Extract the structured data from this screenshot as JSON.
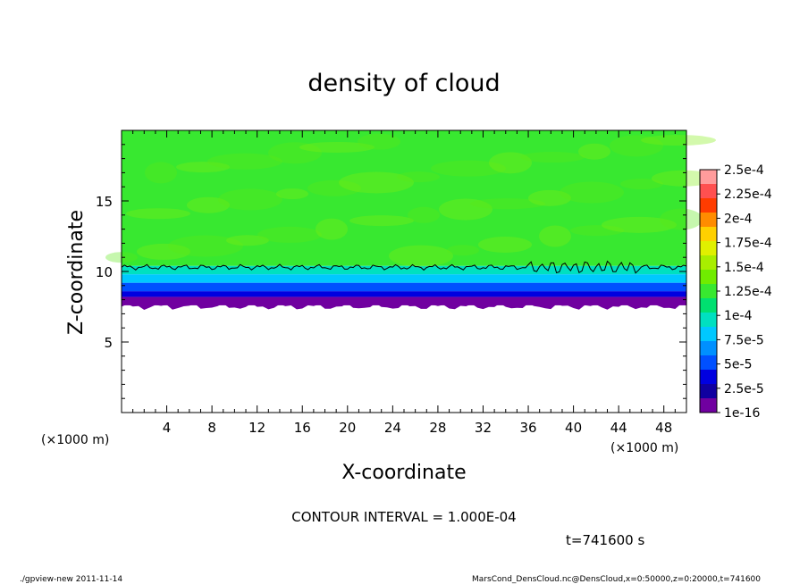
{
  "chart_data": {
    "type": "heatmap",
    "title": "density of cloud",
    "xlabel": "X-coordinate",
    "ylabel": "Z-coordinate",
    "x_unit": "(×1000 m)",
    "y_unit": "(×1000 m)",
    "xlim": [
      0,
      50
    ],
    "ylim": [
      0,
      20
    ],
    "x_ticks": [
      4,
      8,
      12,
      16,
      20,
      24,
      28,
      32,
      36,
      40,
      44,
      48
    ],
    "y_ticks": [
      5,
      10,
      15
    ],
    "colorbar": {
      "labels": [
        "2.5e-4",
        "2.25e-4",
        "2e-4",
        "1.75e-4",
        "1.5e-4",
        "1.25e-4",
        "1e-4",
        "7.5e-5",
        "5e-5",
        "2.5e-5",
        "1e-16"
      ],
      "colors": [
        "#ff9c9c",
        "#ff5050",
        "#ff3c00",
        "#ff8c00",
        "#ffd000",
        "#e0f000",
        "#a8ee00",
        "#70ec00",
        "#38e830",
        "#00e070",
        "#00e0c0",
        "#00c8ff",
        "#0090ff",
        "#0050ff",
        "#0000e0",
        "#1000a0",
        "#7000a0"
      ]
    },
    "layers": [
      {
        "z_range": [
          0.0,
          7.6
        ],
        "value": "none"
      },
      {
        "z_range": [
          7.6,
          8.2
        ],
        "value": "1e-16"
      },
      {
        "z_range": [
          8.2,
          8.6
        ],
        "value": "2.5e-5"
      },
      {
        "z_range": [
          8.6,
          9.2
        ],
        "value": "5e-5"
      },
      {
        "z_range": [
          9.2,
          9.8
        ],
        "value": "7.5e-5"
      },
      {
        "z_range": [
          9.8,
          10.4
        ],
        "value": "1e-4"
      },
      {
        "z_range": [
          10.4,
          20.0
        ],
        "value": "1.25e-4"
      }
    ],
    "contour_level": 0.0001,
    "contour_z_approx": 10.3
  },
  "annotations": {
    "contour_interval": "CONTOUR INTERVAL = 1.000E-04",
    "time": "t=741600 s",
    "footer_left": "./gpview-new   2011-11-14",
    "footer_right": "MarsCond_DensCloud.nc@DensCloud,x=0:50000,z=0:20000,t=741600"
  }
}
